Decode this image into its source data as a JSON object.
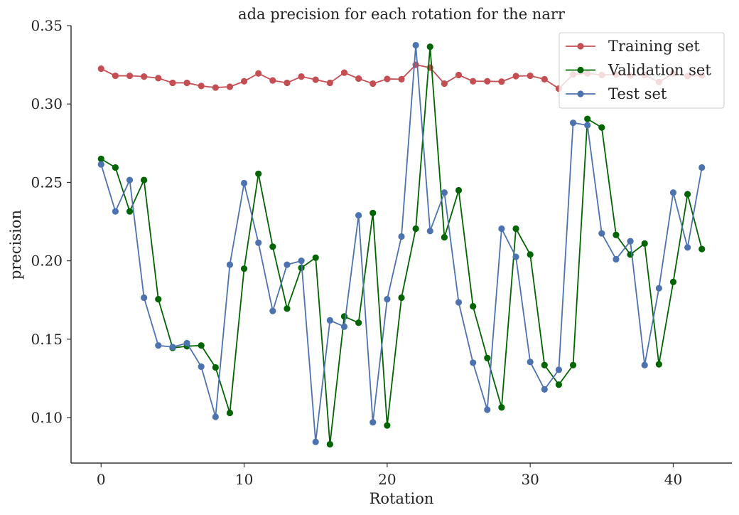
{
  "chart_data": {
    "type": "line",
    "title": "ada precision for each rotation for the narr",
    "xlabel": "Rotation",
    "ylabel": "precision",
    "xlim": [
      -2.1,
      44.1
    ],
    "ylim": [
      0.071,
      0.35
    ],
    "xticks": [
      0,
      10,
      20,
      30,
      40
    ],
    "xtick_labels": [
      "0",
      "10",
      "20",
      "30",
      "40"
    ],
    "yticks": [
      0.1,
      0.15,
      0.2,
      0.25,
      0.3,
      0.35
    ],
    "ytick_labels": [
      "0.10",
      "0.15",
      "0.20",
      "0.25",
      "0.30",
      "0.35"
    ],
    "grid": false,
    "legend_position": "top-right",
    "x": [
      0,
      1,
      2,
      3,
      4,
      5,
      6,
      7,
      8,
      9,
      10,
      11,
      12,
      13,
      14,
      15,
      16,
      17,
      18,
      19,
      20,
      21,
      22,
      23,
      24,
      25,
      26,
      27,
      28,
      29,
      30,
      31,
      32,
      33,
      34,
      35,
      36,
      37,
      38,
      39,
      40,
      41,
      42
    ],
    "series": [
      {
        "name": "Training set",
        "color": "#c44e52",
        "values": [
          0.3225,
          0.318,
          0.318,
          0.3175,
          0.3165,
          0.3135,
          0.3135,
          0.3115,
          0.3105,
          0.311,
          0.3145,
          0.3195,
          0.315,
          0.3135,
          0.3175,
          0.3155,
          0.3135,
          0.32,
          0.3162,
          0.313,
          0.316,
          0.3158,
          0.325,
          0.3232,
          0.313,
          0.3185,
          0.3145,
          0.3145,
          0.3143,
          0.3178,
          0.318,
          0.3158,
          0.3098,
          0.3188,
          0.3195,
          0.3185,
          0.3188,
          0.3182,
          0.3185,
          0.314,
          0.3195,
          0.3178,
          0.3182
        ]
      },
      {
        "name": "Validation set",
        "color": "#006400",
        "values": [
          0.265,
          0.2595,
          0.2315,
          0.2515,
          0.1755,
          0.1445,
          0.1455,
          0.146,
          0.132,
          0.103,
          0.195,
          0.2555,
          0.209,
          0.1695,
          0.1955,
          0.202,
          0.083,
          0.1645,
          0.1605,
          0.2305,
          0.095,
          0.1765,
          0.2205,
          0.3365,
          0.215,
          0.245,
          0.171,
          0.138,
          0.1065,
          0.2205,
          0.204,
          0.1335,
          0.121,
          0.1335,
          0.2905,
          0.285,
          0.2165,
          0.204,
          0.211,
          0.134,
          0.1865,
          0.2425,
          0.2075
        ]
      },
      {
        "name": "Test set",
        "color": "#4c72b0",
        "values": [
          0.2615,
          0.2315,
          0.2515,
          0.1765,
          0.146,
          0.145,
          0.1475,
          0.1325,
          0.1005,
          0.1975,
          0.2495,
          0.2115,
          0.168,
          0.1975,
          0.2,
          0.0845,
          0.162,
          0.158,
          0.229,
          0.097,
          0.1755,
          0.2155,
          0.3375,
          0.219,
          0.2435,
          0.1735,
          0.135,
          0.105,
          0.2205,
          0.2025,
          0.1355,
          0.118,
          0.1305,
          0.288,
          0.2865,
          0.2175,
          0.201,
          0.2125,
          0.1335,
          0.1825,
          0.2435,
          0.2085,
          0.2595
        ]
      }
    ]
  }
}
